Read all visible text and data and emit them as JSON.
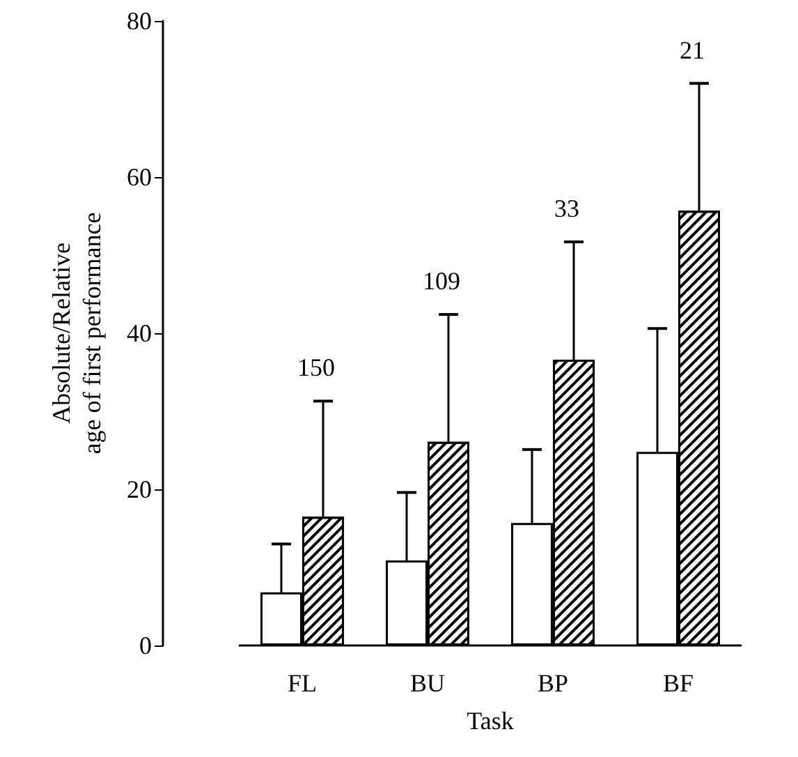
{
  "chart_data": {
    "type": "bar",
    "xlabel": "Task",
    "ylabel": "Absolute/Relative\nage of first performance",
    "categories": [
      "FL",
      "BU",
      "BP",
      "BF"
    ],
    "series": [
      {
        "color": "#ffffff",
        "values": [
          6.8,
          10.9,
          15.7,
          24.8
        ],
        "errors": [
          [
            6.8,
            13.0
          ],
          [
            10.9,
            19.6
          ],
          [
            15.7,
            25.1
          ],
          [
            24.8,
            40.6
          ]
        ]
      },
      {
        "color": "#000000",
        "values": [
          16.5,
          26.1,
          36.6,
          55.7
        ],
        "errors": [
          [
            16.5,
            31.3
          ],
          [
            26.1,
            42.4
          ],
          [
            36.6,
            51.7
          ],
          [
            55.7,
            72.0
          ]
        ]
      }
    ],
    "ylim": [
      0,
      80
    ],
    "yticks": [
      0,
      20,
      40,
      60,
      80
    ],
    "annotations": [
      "150",
      "109",
      "33",
      "21"
    ],
    "grid": false
  }
}
